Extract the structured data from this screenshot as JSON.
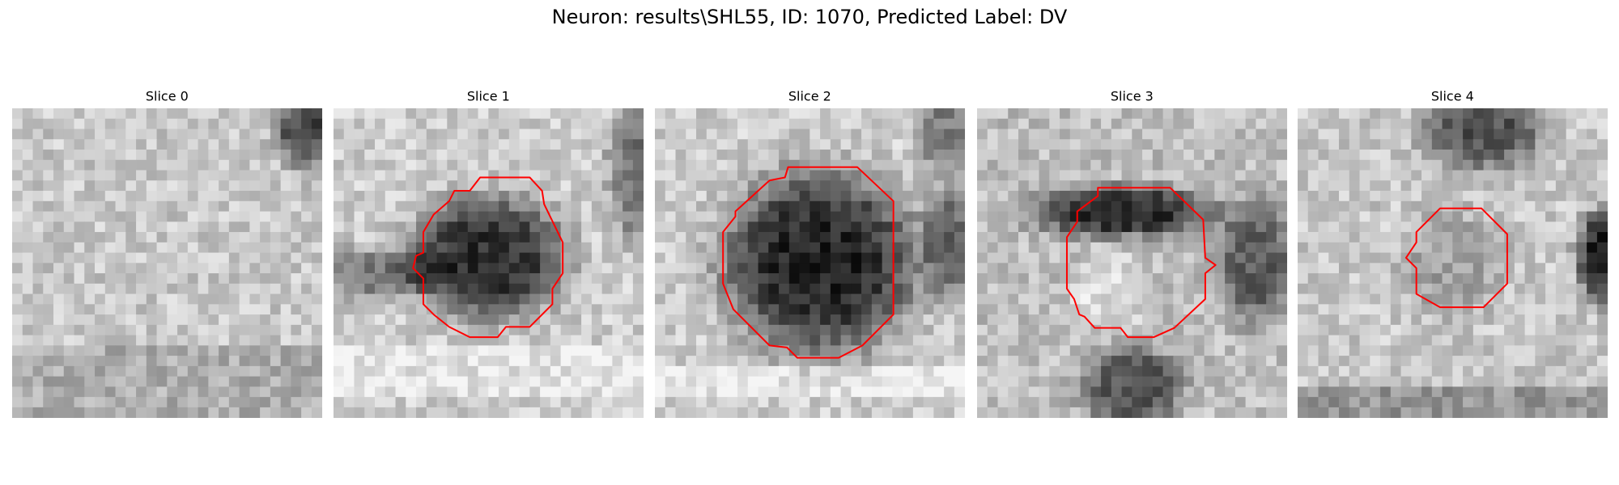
{
  "title": "Neuron: results\\SHL55, ID: 1070, Predicted Label: DV",
  "panels": [
    {
      "title": "Slice 0"
    },
    {
      "title": "Slice 1"
    },
    {
      "title": "Slice 2"
    },
    {
      "title": "Slice 3"
    },
    {
      "title": "Slice 4"
    }
  ]
}
